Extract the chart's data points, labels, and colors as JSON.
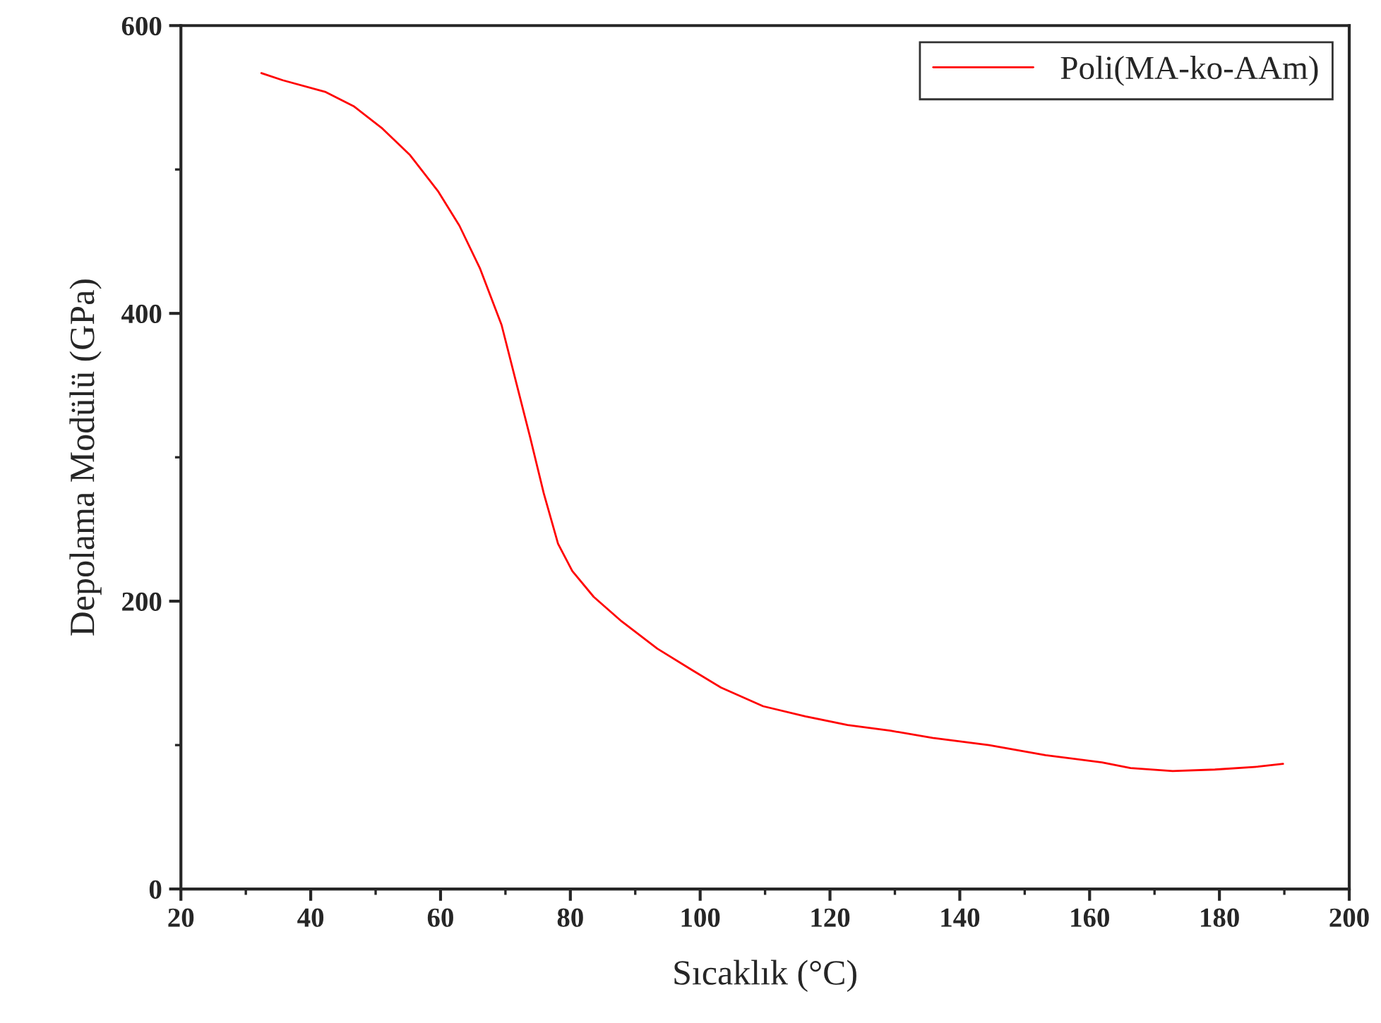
{
  "chart_data": {
    "type": "line",
    "xlabel": "Sıcaklık (°C)",
    "ylabel": "Depolama Modülü (GPa)",
    "xlim": [
      20,
      200
    ],
    "xticks": [
      20,
      40,
      60,
      80,
      100,
      120,
      140,
      160,
      180,
      200
    ],
    "ylim": [
      0,
      600
    ],
    "yticks": [
      0,
      200,
      400,
      600
    ],
    "grid": false,
    "legend": "top right",
    "series": [
      {
        "name": "Poli(MA-ko-AAm)",
        "color": "#ff0000",
        "x": [
          32.4,
          35.7,
          42.2,
          46.6,
          50.9,
          55.3,
          59.6,
          62.9,
          66.1,
          69.4,
          71.6,
          73.8,
          75.9,
          78.1,
          80.3,
          83.6,
          87.9,
          93.4,
          98.8,
          103.2,
          109.7,
          116.2,
          122.7,
          129.3,
          135.8,
          144.5,
          153.2,
          161.9,
          166.3,
          172.8,
          179.3,
          185.9,
          189.8
        ],
        "values": [
          567,
          562,
          554,
          544,
          529,
          510,
          485,
          461,
          431,
          392,
          353,
          314,
          275,
          240,
          221,
          203,
          186,
          167,
          152,
          140,
          127,
          120,
          114,
          110,
          105,
          100,
          93,
          88,
          84,
          82,
          83,
          85,
          87
        ]
      }
    ]
  }
}
